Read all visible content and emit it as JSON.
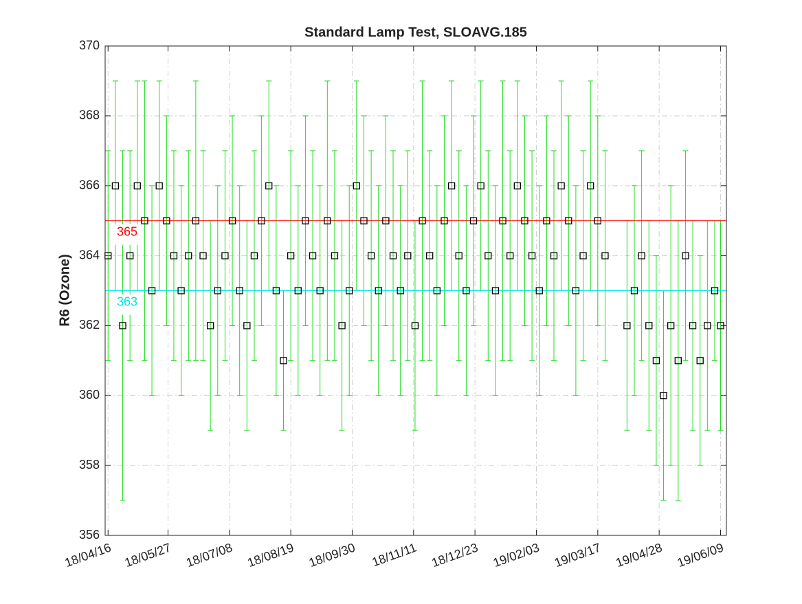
{
  "chart_data": {
    "type": "errorbar",
    "title": "Standard Lamp Test, SLOAVG.185",
    "ylabel": "R6 (Ozone)",
    "xlim": [
      "18/04/14",
      "19/06/13"
    ],
    "xticks": [
      "18/04/16",
      "18/05/27",
      "18/07/08",
      "18/08/19",
      "18/09/30",
      "18/11/11",
      "18/12/23",
      "19/02/03",
      "19/03/17",
      "19/04/28",
      "19/06/09"
    ],
    "ylim": [
      356,
      370
    ],
    "yticks": [
      356,
      358,
      360,
      362,
      364,
      366,
      368,
      370
    ],
    "grid": true,
    "reference_lines": [
      {
        "value": 365,
        "color": "#ff0000"
      },
      {
        "value": 363,
        "color": "#00e5e5"
      }
    ],
    "series": [
      {
        "color": "#22dd22",
        "marker_color": "#000000",
        "x": [
          "18/04/16",
          "18/04/21",
          "18/04/26",
          "18/05/01",
          "18/05/06",
          "18/05/11",
          "18/05/16",
          "18/05/21",
          "18/05/26",
          "18/05/31",
          "18/06/05",
          "18/06/10",
          "18/06/15",
          "18/06/20",
          "18/06/25",
          "18/06/30",
          "18/07/05",
          "18/07/10",
          "18/07/15",
          "18/07/20",
          "18/07/25",
          "18/07/30",
          "18/08/04",
          "18/08/09",
          "18/08/14",
          "18/08/19",
          "18/08/24",
          "18/08/29",
          "18/09/03",
          "18/09/08",
          "18/09/13",
          "18/09/18",
          "18/09/23",
          "18/09/28",
          "18/10/03",
          "18/10/08",
          "18/10/13",
          "18/10/18",
          "18/10/23",
          "18/10/28",
          "18/11/02",
          "18/11/07",
          "18/11/12",
          "18/11/17",
          "18/11/22",
          "18/11/27",
          "18/12/02",
          "18/12/07",
          "18/12/12",
          "18/12/17",
          "18/12/22",
          "18/12/27",
          "19/01/01",
          "19/01/06",
          "19/01/11",
          "19/01/16",
          "19/01/21",
          "19/01/26",
          "19/01/31",
          "19/02/05",
          "19/02/10",
          "19/02/15",
          "19/02/20",
          "19/02/25",
          "19/03/02",
          "19/03/07",
          "19/03/12",
          "19/03/17",
          "19/03/22",
          "19/04/06",
          "19/04/11",
          "19/04/16",
          "19/04/21",
          "19/04/26",
          "19/05/01",
          "19/05/06",
          "19/05/11",
          "19/05/16",
          "19/05/21",
          "19/05/26",
          "19/05/31",
          "19/06/05",
          "19/06/09"
        ],
        "values": [
          364,
          366,
          362,
          364,
          366,
          365,
          363,
          366,
          365,
          364,
          363,
          364,
          365,
          364,
          362,
          363,
          364,
          365,
          363,
          362,
          364,
          365,
          366,
          363,
          361,
          364,
          363,
          365,
          364,
          363,
          365,
          364,
          362,
          363,
          366,
          365,
          364,
          363,
          365,
          364,
          363,
          364,
          362,
          365,
          364,
          363,
          365,
          366,
          364,
          363,
          365,
          366,
          364,
          363,
          365,
          364,
          366,
          365,
          364,
          363,
          365,
          364,
          366,
          365,
          363,
          364,
          366,
          365,
          364,
          362,
          363,
          364,
          362,
          361,
          360,
          362,
          361,
          364,
          362,
          361,
          362,
          363,
          362
        ],
        "errors": [
          3,
          3,
          5,
          3,
          3,
          4,
          3,
          3,
          3,
          3,
          3,
          3,
          4,
          3,
          3,
          3,
          3,
          3,
          3,
          3,
          3,
          3,
          3,
          3,
          2,
          3,
          3,
          3,
          3,
          3,
          4,
          3,
          3,
          3,
          3,
          3,
          3,
          3,
          3,
          3,
          3,
          3,
          3,
          4,
          3,
          3,
          3,
          3,
          3,
          3,
          3,
          3,
          3,
          3,
          4,
          3,
          3,
          3,
          3,
          3,
          3,
          3,
          3,
          3,
          3,
          3,
          3,
          3,
          3,
          3,
          3,
          3,
          3,
          3,
          3,
          4,
          4,
          3,
          3,
          3,
          3,
          2,
          3
        ]
      }
    ]
  }
}
